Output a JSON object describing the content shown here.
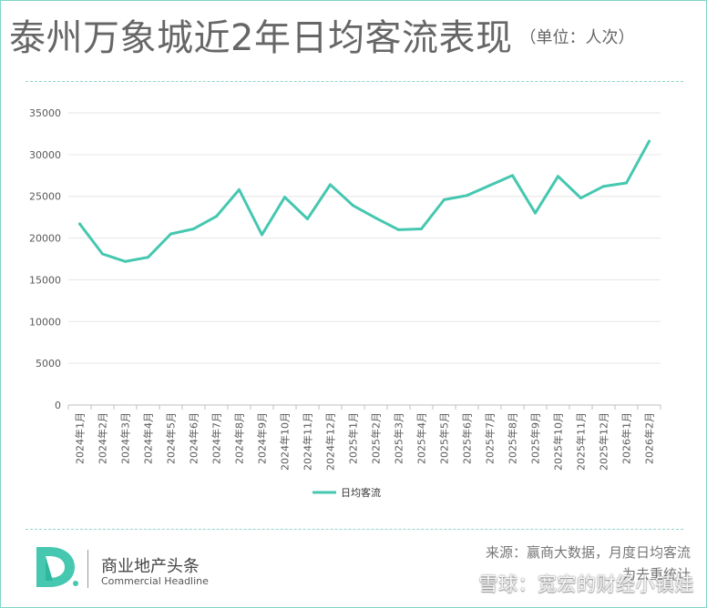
{
  "header": {
    "title": "泰州万象城近2年日均客流表现",
    "unit_note": "（单位：人次）"
  },
  "colors": {
    "accent": "#45c7b0",
    "frame": "#7fd6c8",
    "grid": "#e5e5e5",
    "text": "#666666"
  },
  "chart_data": {
    "type": "line",
    "categories": [
      "2024年1月",
      "2024年2月",
      "2024年3月",
      "2024年4月",
      "2024年5月",
      "2024年6月",
      "2024年7月",
      "2024年8月",
      "2024年9月",
      "2024年10月",
      "2024年11月",
      "2024年12月",
      "2025年1月",
      "2025年2月",
      "2025年3月",
      "2025年4月",
      "2025年5月",
      "2025年6月",
      "2025年7月",
      "2025年8月",
      "2025年9月",
      "2025年10月",
      "2025年11月",
      "2025年12月",
      "2026年1月",
      "2026年2月"
    ],
    "series": [
      {
        "name": "日均客流",
        "values": [
          21700,
          18100,
          17200,
          17700,
          20500,
          21100,
          22600,
          25800,
          20400,
          24900,
          22300,
          26400,
          23900,
          22400,
          21000,
          21100,
          24600,
          25100,
          26300,
          27500,
          23000,
          27400,
          24800,
          26200,
          26600,
          31600
        ]
      }
    ],
    "ylim": [
      0,
      35000
    ],
    "yticks": [
      0,
      5000,
      10000,
      15000,
      20000,
      25000,
      30000,
      35000
    ],
    "grid": true,
    "legend_position": "bottom-center"
  },
  "footer": {
    "brand_cn": "商业地产头条",
    "brand_en": "Commercial Headline",
    "source_line1": "来源：赢商大数据，月度日均客流",
    "source_line2": "为去重统计",
    "watermark": "雪球：宽宏的财经小镇娃"
  }
}
